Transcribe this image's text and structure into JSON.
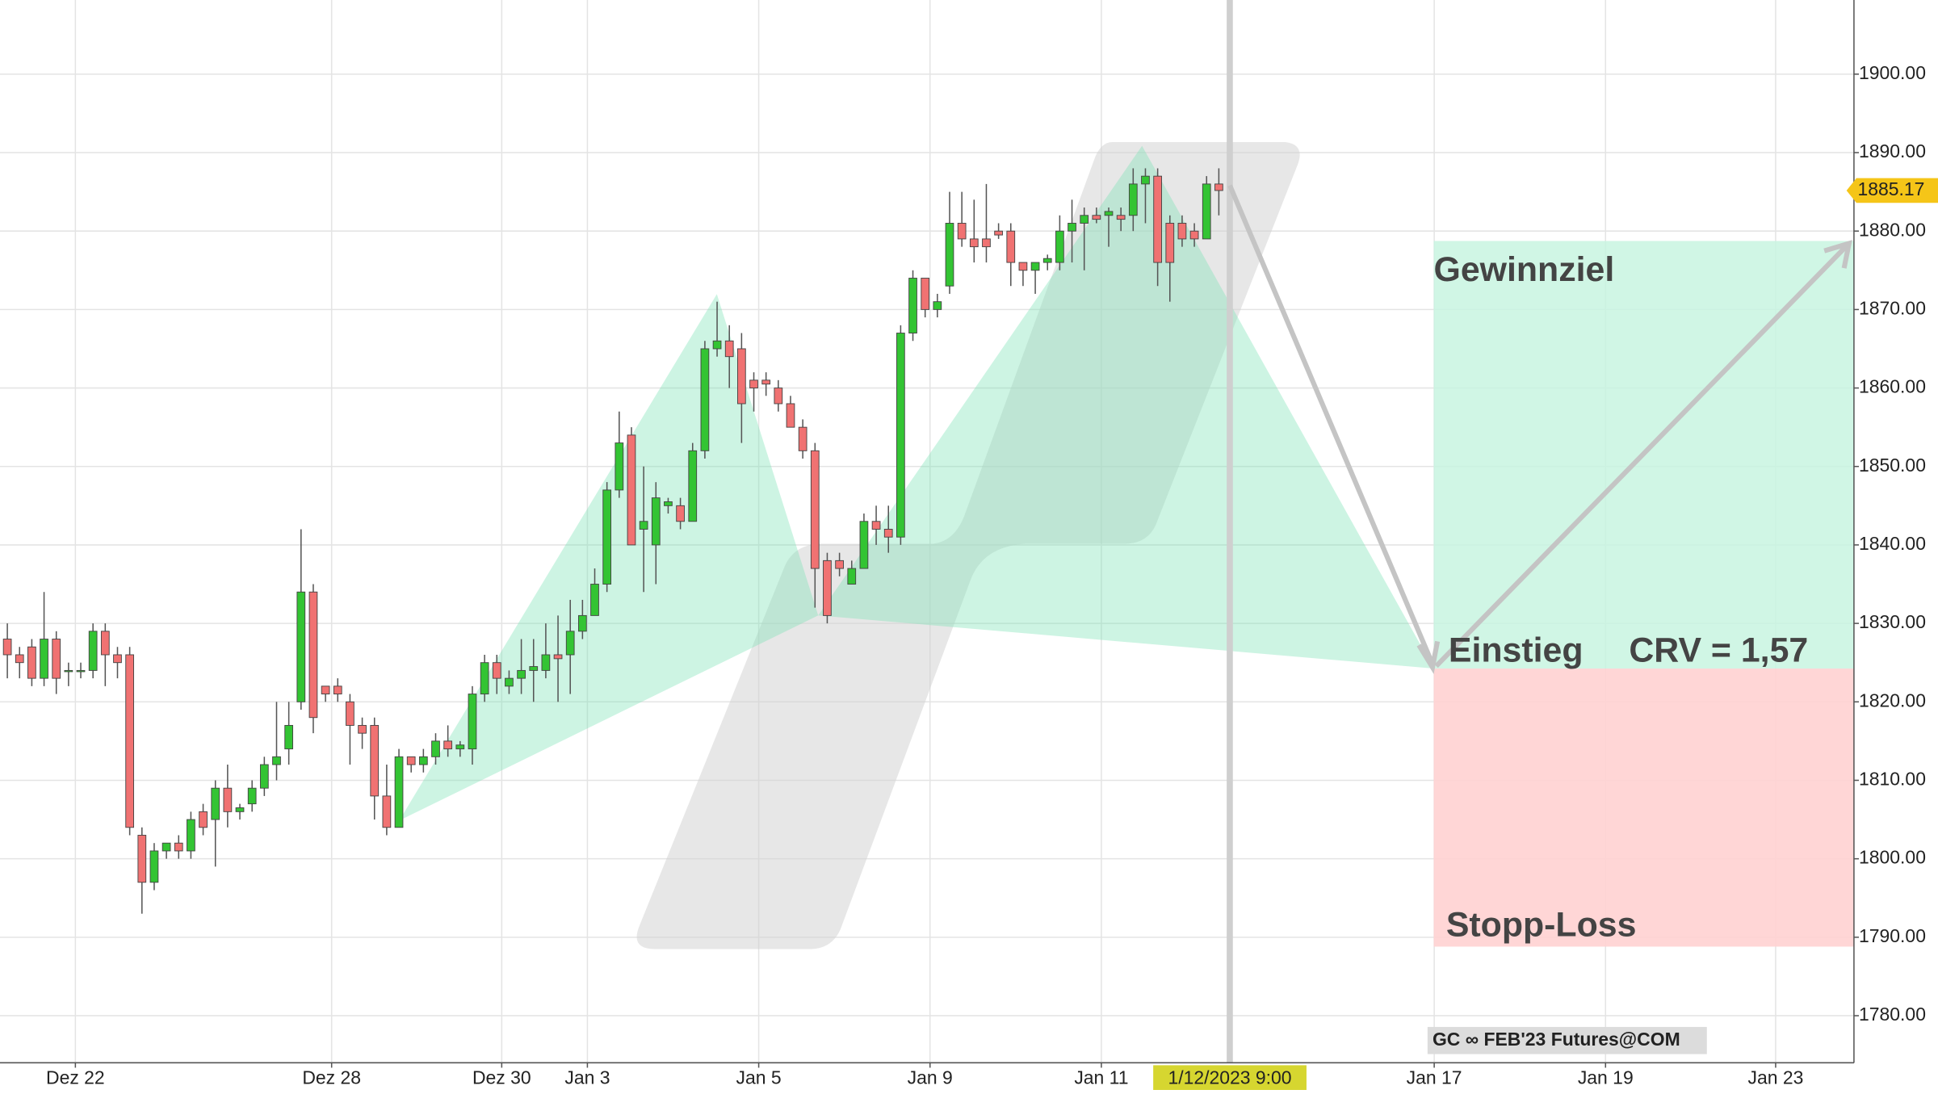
{
  "chart_data": {
    "type": "candlestick",
    "x": [
      0,
      1,
      2,
      3,
      4,
      5,
      6,
      7,
      8,
      9,
      10,
      11,
      12,
      13,
      14,
      15,
      16,
      17,
      18,
      19,
      20,
      21,
      22,
      23,
      24,
      25,
      26,
      27,
      28,
      29,
      30,
      31,
      32,
      33,
      34,
      35,
      36,
      37,
      38,
      39,
      40,
      41,
      42,
      43,
      44,
      45,
      46,
      47,
      48,
      49,
      50,
      51,
      52,
      53,
      54,
      55,
      56,
      57,
      58,
      59,
      60,
      61,
      62,
      63,
      64,
      65,
      66,
      67,
      68,
      69,
      70,
      71,
      72,
      73,
      74,
      75,
      76,
      77,
      78,
      79,
      80,
      81,
      82,
      83,
      84,
      85,
      86,
      87,
      88,
      89,
      90,
      91,
      92,
      93,
      94,
      95,
      96,
      97,
      98,
      99
    ],
    "open": [
      1828,
      1826,
      1827,
      1823,
      1828,
      1824,
      1824,
      1824,
      1829,
      1826,
      1826,
      1803,
      1797,
      1801,
      1802,
      1801,
      1806,
      1805,
      1809,
      1806,
      1807,
      1809,
      1812,
      1814,
      1820,
      1834,
      1822,
      1822,
      1820,
      1817,
      1817,
      1808,
      1804,
      1813,
      1812,
      1813,
      1815,
      1814,
      1814,
      1821,
      1825,
      1822,
      1823,
      1824,
      1824,
      1826,
      1826,
      1829,
      1831,
      1835,
      1847,
      1854,
      1842,
      1840,
      1845,
      1845,
      1843,
      1852,
      1865,
      1866,
      1865,
      1861,
      1861,
      1860,
      1858,
      1855,
      1852,
      1838,
      1838,
      1835,
      1837,
      1843,
      1842,
      1841,
      1867,
      1874,
      1870,
      1873,
      1881,
      1879,
      1879,
      1880,
      1880,
      1876,
      1875,
      1876,
      1876,
      1880,
      1881,
      1882,
      1882,
      1882,
      1882,
      1886,
      1887,
      1881,
      1881,
      1880,
      1879,
      1886
    ],
    "high": [
      1830,
      1827,
      1828,
      1834,
      1829,
      1825,
      1825,
      1830,
      1830,
      1827,
      1827,
      1804,
      1802,
      1802,
      1803,
      1806,
      1807,
      1810,
      1812,
      1807,
      1810,
      1813,
      1820,
      1820,
      1842,
      1835,
      1822,
      1823,
      1821,
      1818,
      1818,
      1812,
      1814,
      1813,
      1814,
      1816,
      1817,
      1815,
      1822,
      1826,
      1826,
      1824,
      1828,
      1828,
      1830,
      1831,
      1833,
      1833,
      1837,
      1848,
      1857,
      1855,
      1850,
      1848,
      1846,
      1846,
      1853,
      1866,
      1871,
      1868,
      1867,
      1862,
      1862,
      1861,
      1859,
      1856,
      1853,
      1839,
      1839,
      1838,
      1844,
      1845,
      1845,
      1868,
      1875,
      1874,
      1872,
      1885,
      1885,
      1884,
      1886,
      1881,
      1881,
      1876,
      1876,
      1877,
      1882,
      1884,
      1883,
      1883,
      1883,
      1883,
      1888,
      1888,
      1888,
      1882,
      1882,
      1881,
      1887,
      1888
    ],
    "low": [
      1823,
      1823,
      1822,
      1822,
      1821,
      1822,
      1823,
      1823,
      1822,
      1823,
      1803,
      1793,
      1796,
      1800,
      1800,
      1800,
      1803,
      1799,
      1804,
      1805,
      1806,
      1808,
      1810,
      1812,
      1819,
      1816,
      1820,
      1820,
      1812,
      1814,
      1805,
      1803,
      1804,
      1811,
      1811,
      1812,
      1813,
      1813,
      1812,
      1820,
      1821,
      1821,
      1821,
      1820,
      1823,
      1820,
      1821,
      1828,
      1831,
      1834,
      1846,
      1840,
      1834,
      1835,
      1844,
      1842,
      1843,
      1851,
      1864,
      1860,
      1853,
      1857,
      1859,
      1857,
      1855,
      1851,
      1832,
      1830,
      1836,
      1835,
      1837,
      1840,
      1839,
      1840,
      1866,
      1869,
      1869,
      1872,
      1878,
      1876,
      1876,
      1879,
      1873,
      1873,
      1872,
      1875,
      1875,
      1876,
      1875,
      1881,
      1878,
      1880,
      1880,
      1881,
      1873,
      1871,
      1878,
      1878,
      1879,
      1882
    ],
    "close": [
      1826,
      1825,
      1823,
      1828,
      1823,
      1824,
      1824,
      1829,
      1826,
      1825,
      1804,
      1797,
      1801,
      1802,
      1801,
      1805,
      1804,
      1809,
      1806,
      1806.5,
      1809,
      1812,
      1813,
      1817,
      1834,
      1818,
      1821,
      1821,
      1817,
      1816,
      1808,
      1804,
      1813,
      1812,
      1813,
      1815,
      1814,
      1814.5,
      1821,
      1825,
      1823,
      1823,
      1824,
      1824.5,
      1826,
      1825.5,
      1829,
      1831,
      1835,
      1847,
      1853,
      1840,
      1843,
      1846,
      1845.5,
      1843,
      1852,
      1865,
      1866,
      1864,
      1858,
      1860,
      1860.5,
      1858,
      1855,
      1852,
      1837,
      1831,
      1837,
      1837,
      1843,
      1842,
      1841,
      1867,
      1874,
      1870,
      1871,
      1881,
      1879,
      1878,
      1878,
      1879.5,
      1876,
      1875,
      1876,
      1876.5,
      1880,
      1881,
      1882,
      1881.5,
      1882.5,
      1881.5,
      1886,
      1887,
      1876,
      1876,
      1879,
      1879,
      1886,
      1885.17
    ],
    "up_color": "#33c433",
    "down_color": "#f07272",
    "xlim": [
      -0.6,
      150.9
    ],
    "xticks": [
      {
        "value": 5.56,
        "label": "Dez 22"
      },
      {
        "value": 26.5,
        "label": "Dez 28"
      },
      {
        "value": 40.4,
        "label": "Dez 30"
      },
      {
        "value": 47.4,
        "label": "Jan 3"
      },
      {
        "value": 61.4,
        "label": "Jan 5"
      },
      {
        "value": 75.4,
        "label": "Jan 9"
      },
      {
        "value": 89.4,
        "label": "Jan 11"
      },
      {
        "value": 116.6,
        "label": "Jan 17"
      },
      {
        "value": 130.6,
        "label": "Jan 19"
      },
      {
        "value": 144.5,
        "label": "Jan 23"
      }
    ],
    "crosshair": {
      "value": 99.9,
      "label": "1/12/2023 9:00"
    },
    "ylim": [
      1774,
      1909.45
    ],
    "yticks": [
      {
        "value": 1780,
        "label": "1780.00"
      },
      {
        "value": 1790,
        "label": "1790.00"
      },
      {
        "value": 1800,
        "label": "1800.00"
      },
      {
        "value": 1810,
        "label": "1810.00"
      },
      {
        "value": 1820,
        "label": "1820.00"
      },
      {
        "value": 1830,
        "label": "1830.00"
      },
      {
        "value": 1840,
        "label": "1840.00"
      },
      {
        "value": 1850,
        "label": "1850.00"
      },
      {
        "value": 1860,
        "label": "1860.00"
      },
      {
        "value": 1870,
        "label": "1870.00"
      },
      {
        "value": 1880,
        "label": "1880.00"
      },
      {
        "value": 1890,
        "label": "1890.00"
      },
      {
        "value": 1900,
        "label": "1900.00"
      }
    ],
    "grid": true,
    "annotations": {
      "target": "Gewinnziel",
      "entry": "Einstieg",
      "crv": "CRV = 1,57",
      "stop": "Stopp-Loss"
    },
    "instrument": "GC ∞ FEB'23 Futures@COM"
  }
}
